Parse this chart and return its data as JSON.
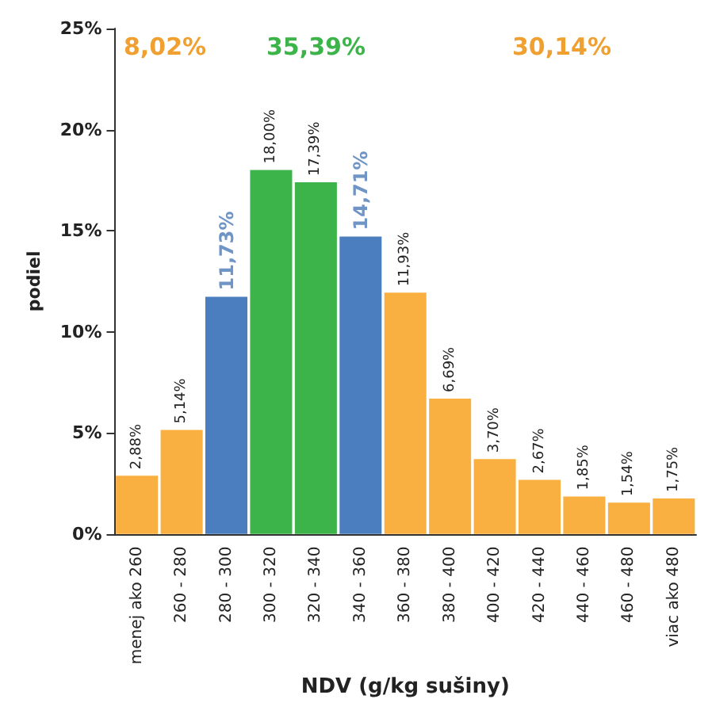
{
  "chart_data": {
    "type": "bar",
    "xlabel": "NDV (g/kg sušiny)",
    "ylabel": "podiel",
    "categories": [
      "menej ako 260",
      "260 - 280",
      "280 - 300",
      "300 - 320",
      "320 - 340",
      "340 - 360",
      "360 - 380",
      "380 - 400",
      "400 - 420",
      "420 - 440",
      "440 - 460",
      "460 - 480",
      "viac ako 480"
    ],
    "values": [
      2.88,
      5.14,
      11.73,
      18.0,
      17.39,
      14.71,
      11.93,
      6.69,
      3.7,
      2.67,
      1.85,
      1.54,
      1.75
    ],
    "colors": [
      "#f9b040",
      "#f9b040",
      "#4a7ebf",
      "#3cb44a",
      "#3cb44a",
      "#4a7ebf",
      "#f9b040",
      "#f9b040",
      "#f9b040",
      "#f9b040",
      "#f9b040",
      "#f9b040",
      "#f9b040"
    ],
    "value_labels": [
      "2,88%",
      "5,14%",
      "11,73%",
      "18,00%",
      "17,39%",
      "14,71%",
      "11,93%",
      "6,69%",
      "3,70%",
      "2,67%",
      "1,85%",
      "1,54%",
      "1,75%"
    ],
    "ylim": [
      0,
      25
    ],
    "yticks": [
      {
        "value": 0,
        "label": "0%"
      },
      {
        "value": 5,
        "label": "5%"
      },
      {
        "value": 10,
        "label": "10%"
      },
      {
        "value": 15,
        "label": "15%"
      },
      {
        "value": 20,
        "label": "20%"
      },
      {
        "value": 25,
        "label": "25%"
      }
    ],
    "grid": false,
    "annotations": [
      "8,02%",
      "35,39%",
      "30,14%"
    ]
  }
}
